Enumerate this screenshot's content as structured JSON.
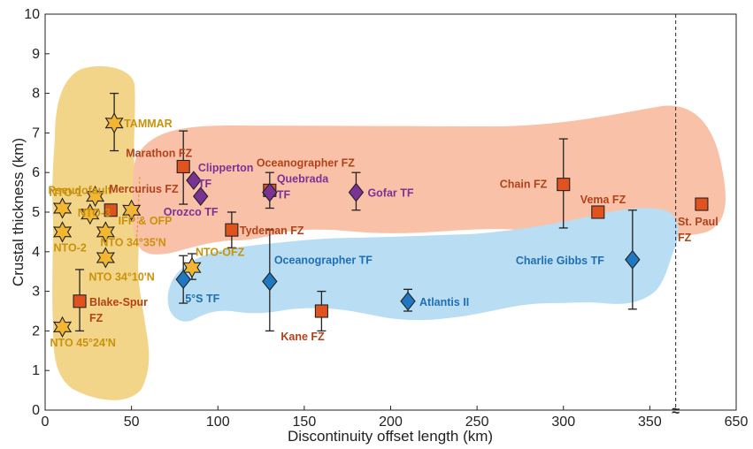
{
  "chart_data": {
    "type": "scatter",
    "title": "",
    "xlabel": "Discontinuity offset length (km)",
    "ylabel": "Crustal thickness (km)",
    "xlim": [
      0,
      400
    ],
    "ylim": [
      0,
      10
    ],
    "x_ticks": [
      "0",
      "50",
      "100",
      "150",
      "200",
      "250",
      "300",
      "350",
      "650"
    ],
    "y_ticks": [
      "0",
      "1",
      "2",
      "3",
      "4",
      "5",
      "6",
      "7",
      "8",
      "9",
      "10"
    ],
    "axis_break_marker": "≈",
    "axis_break_x": 365,
    "grid": false,
    "colors": {
      "nontransform": "#f2b632",
      "fracture_zone": "#e0531f",
      "slow_transform": "#7a3294",
      "fast_transform": "#1f78c1",
      "nontransform_label": "#c8920d",
      "fz_label": "#b2421a",
      "slow_label": "#7a3294",
      "fast_label": "#1f6fb5",
      "yellow_region": "#f3d58a",
      "orange_region": "#f9c2a8",
      "blue_region": "#b9ddf2"
    },
    "series": [
      {
        "group": "nontransform",
        "marker": "star",
        "points": [
          {
            "label": "TAMMAR",
            "x": 40,
            "y": 7.25,
            "err": [
              6.55,
              8.0
            ]
          },
          {
            "label": "Pseudofault",
            "x": 10,
            "y": 5.1
          },
          {
            "label": "NTO-1",
            "x": 29,
            "y": 5.4
          },
          {
            "label": "NTO-3",
            "x": 26,
            "y": 4.95
          },
          {
            "label": "NTO-2",
            "x": 10,
            "y": 4.5
          },
          {
            "label": "IFP & OFP",
            "x": 50,
            "y": 5.05
          },
          {
            "label": "NTO 34°35'N",
            "x": 35,
            "y": 4.5
          },
          {
            "label": "NTO 34°10'N",
            "x": 35,
            "y": 3.85
          },
          {
            "label": "NTO-OFZ",
            "x": 85,
            "y": 3.6,
            "err": [
              3.3,
              3.95
            ]
          },
          {
            "label": "NTO 45°24'N",
            "x": 10,
            "y": 2.1
          }
        ]
      },
      {
        "group": "fracture_zone",
        "marker": "square",
        "points": [
          {
            "label": "Marathon FZ",
            "x": 80,
            "y": 6.15,
            "err": [
              5.2,
              7.05
            ]
          },
          {
            "label": "Mercurius FZ",
            "x": 38,
            "y": 5.05
          },
          {
            "label": "Oceanographer FZ",
            "x": 130,
            "y": 5.55,
            "err": [
              5.1,
              6.0
            ]
          },
          {
            "label": "Tydeman FZ",
            "x": 108,
            "y": 4.55,
            "err": [
              4.1,
              5.0
            ]
          },
          {
            "label": "Blake-Spur FZ",
            "x": 20,
            "y": 2.75,
            "err": [
              2.0,
              3.55
            ]
          },
          {
            "label": "Kane FZ",
            "x": 160,
            "y": 2.5,
            "err": [
              2.0,
              3.0
            ]
          },
          {
            "label": "Chain FZ",
            "x": 300,
            "y": 5.7,
            "err": [
              4.6,
              6.85
            ]
          },
          {
            "label": "Vema FZ",
            "x": 320,
            "y": 5.0
          },
          {
            "label": "St. Paul FZ",
            "x": 380,
            "y": 5.2
          }
        ]
      },
      {
        "group": "slow_transform",
        "marker": "diamond",
        "points": [
          {
            "label": "Clipperton TF",
            "x": 86,
            "y": 5.8
          },
          {
            "label": "Orozco TF",
            "x": 90,
            "y": 5.4
          },
          {
            "label": "Quebrada TF",
            "x": 130,
            "y": 5.5
          },
          {
            "label": "Gofar TF",
            "x": 180,
            "y": 5.5,
            "err": [
              5.05,
              6.0
            ]
          }
        ]
      },
      {
        "group": "fast_transform",
        "marker": "diamond",
        "points": [
          {
            "label": "5°S TF",
            "x": 80,
            "y": 3.3,
            "err": [
              2.7,
              3.9
            ]
          },
          {
            "label": "Oceanographer TF",
            "x": 130,
            "y": 3.25,
            "err": [
              2.0,
              4.55
            ]
          },
          {
            "label": "Atlantis II",
            "x": 210,
            "y": 2.75,
            "err": [
              2.5,
              3.05
            ]
          },
          {
            "label": "Charlie Gibbs TF",
            "x": 340,
            "y": 3.8,
            "err": [
              2.55,
              5.05
            ]
          }
        ]
      }
    ]
  }
}
